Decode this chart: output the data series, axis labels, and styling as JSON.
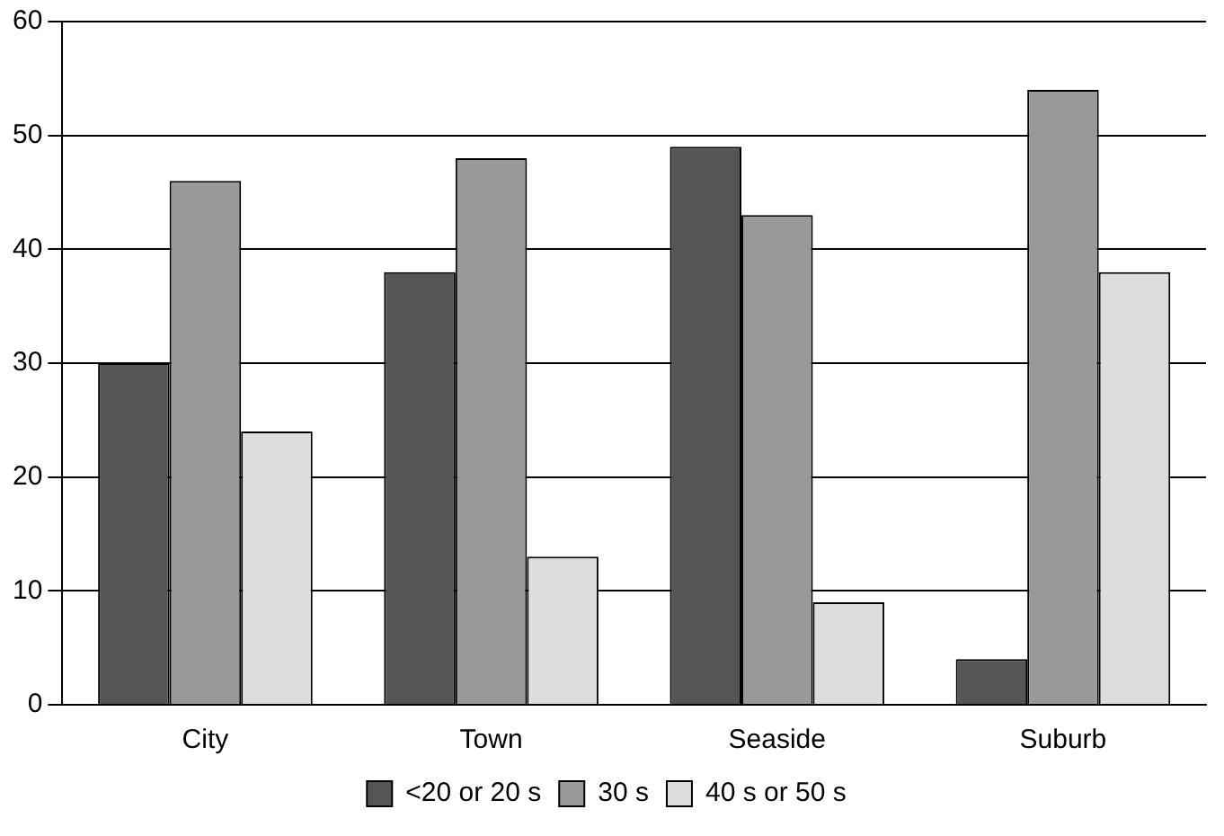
{
  "chart_data": {
    "type": "bar",
    "categories": [
      "City",
      "Town",
      "Seaside",
      "Suburb"
    ],
    "series": [
      {
        "name": "<20 or 20 s",
        "color": "#555555",
        "values": [
          30,
          38,
          49,
          4
        ]
      },
      {
        "name": "30 s",
        "color": "#999999",
        "values": [
          46,
          48,
          43,
          54
        ]
      },
      {
        "name": "40 s or 50 s",
        "color": "#dddddd",
        "values": [
          24,
          13,
          9,
          38
        ]
      }
    ],
    "ylim": [
      0,
      60
    ],
    "yticks": [
      0,
      10,
      20,
      30,
      40,
      50,
      60
    ],
    "grid": "y",
    "legend": "bottom"
  }
}
